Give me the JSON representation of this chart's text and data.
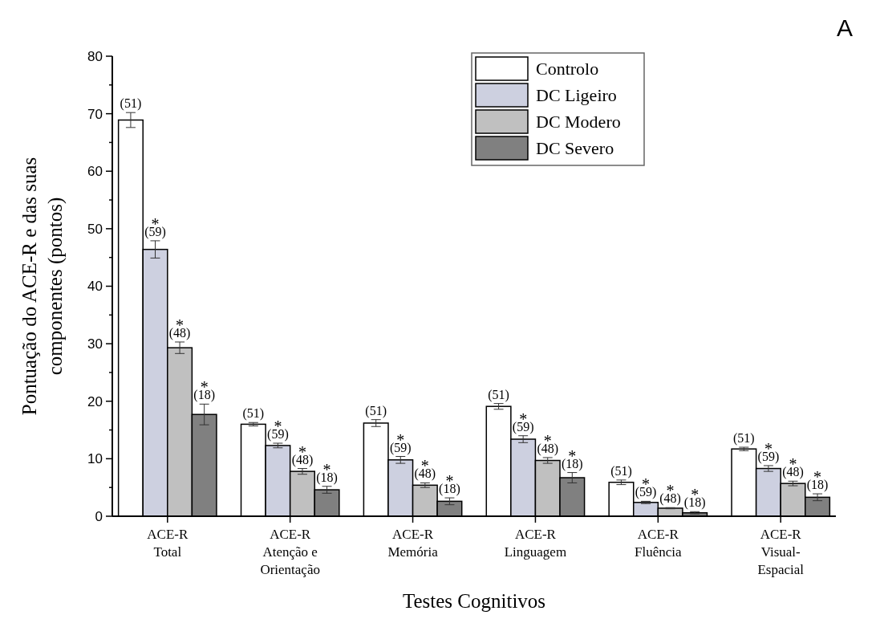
{
  "chart_data": {
    "type": "bar",
    "xlabel": "Testes Cognitivos",
    "ylabel": "Pontuação do ACE-R e das suas\ncomponentes (pontos)",
    "categories": [
      "ACE-R\nTotal",
      "ACE-R\nAtenção e\nOrientação",
      "ACE-R\nMemória",
      "ACE-R\nLinguagem",
      "ACE-R\nFluência",
      "ACE-R\nVisual-\nEspacial"
    ],
    "series": [
      {
        "name": "Controlo",
        "color": "#ffffff",
        "values": [
          68.9,
          16.0,
          16.2,
          19.1,
          5.9,
          11.7
        ],
        "errors": [
          1.3,
          0.3,
          0.6,
          0.5,
          0.4,
          0.3
        ]
      },
      {
        "name": "DC Ligeiro",
        "color": "#cdd0e0",
        "values": [
          46.4,
          12.3,
          9.8,
          13.4,
          2.4,
          8.3
        ],
        "errors": [
          1.5,
          0.4,
          0.6,
          0.6,
          0.2,
          0.5
        ]
      },
      {
        "name": "DC Modero",
        "color": "#c0c0c0",
        "values": [
          29.3,
          7.8,
          5.4,
          9.7,
          1.4,
          5.7
        ],
        "errors": [
          1.0,
          0.5,
          0.4,
          0.5,
          0.1,
          0.4
        ]
      },
      {
        "name": "DC Severo",
        "color": "#808080",
        "values": [
          17.7,
          4.6,
          2.6,
          6.7,
          0.6,
          3.3
        ],
        "errors": [
          1.8,
          0.6,
          0.6,
          0.9,
          0.2,
          0.6
        ]
      }
    ],
    "ylim": [
      0,
      80
    ],
    "yticks": [
      0,
      {
        "value": 5,
        "label": null
      },
      10,
      {
        "value": 15,
        "label": null
      },
      20,
      {
        "value": 25,
        "label": null
      },
      30,
      {
        "value": 35,
        "label": null
      },
      40,
      {
        "value": 45,
        "label": null
      },
      50,
      {
        "value": 55,
        "label": null
      },
      60,
      {
        "value": 65,
        "label": null
      },
      70,
      {
        "value": 75,
        "label": null
      },
      80
    ],
    "grid": false,
    "legend": "top right",
    "annotations": [
      "A",
      "(51)",
      "*\n(59)",
      "*\n(48)",
      "*\n(18)",
      "(51)",
      "*\n(59)",
      "*\n(48)",
      "*\n(18)",
      "(51)",
      "*\n(59)",
      "*\n(48)",
      "*\n(18)",
      "(51)",
      "*\n(59)",
      "*\n(48)",
      "*\n(18)",
      "(51)",
      "*\n(59)",
      "*\n(48)",
      "*\n(18)",
      "(51)",
      "*\n(59)",
      "*\n(48)",
      "*\n(18)"
    ]
  }
}
